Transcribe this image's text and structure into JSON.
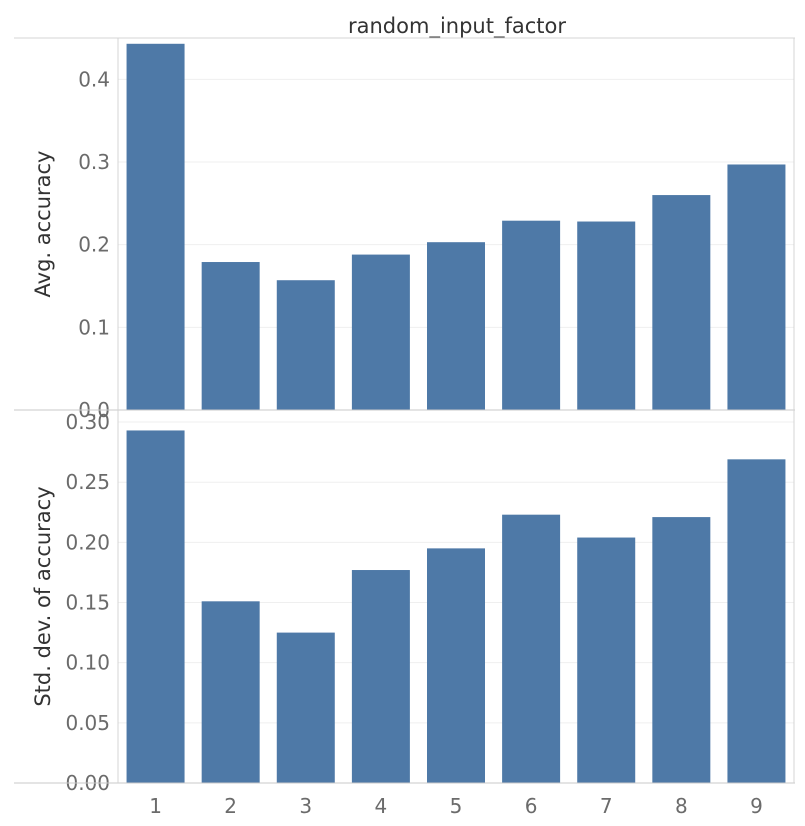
{
  "chart_data": {
    "type": "bar",
    "title": "random_input_factor",
    "categories": [
      "1",
      "2",
      "3",
      "4",
      "5",
      "6",
      "7",
      "8",
      "9"
    ],
    "bar_color": "#4e79a7",
    "grid": true,
    "panels": [
      {
        "ylabel": "Avg. accuracy",
        "ylim": [
          0,
          0.45
        ],
        "yticks": [
          "0.0",
          "0.1",
          "0.2",
          "0.3",
          "0.4"
        ],
        "values": [
          0.443,
          0.179,
          0.157,
          0.188,
          0.203,
          0.229,
          0.228,
          0.26,
          0.297
        ]
      },
      {
        "ylabel": "Std. dev. of accuracy",
        "ylim": [
          0,
          0.31
        ],
        "yticks": [
          "0.00",
          "0.05",
          "0.10",
          "0.15",
          "0.20",
          "0.25",
          "0.30"
        ],
        "values": [
          0.293,
          0.151,
          0.125,
          0.177,
          0.195,
          0.223,
          0.204,
          0.221,
          0.269
        ]
      }
    ]
  }
}
